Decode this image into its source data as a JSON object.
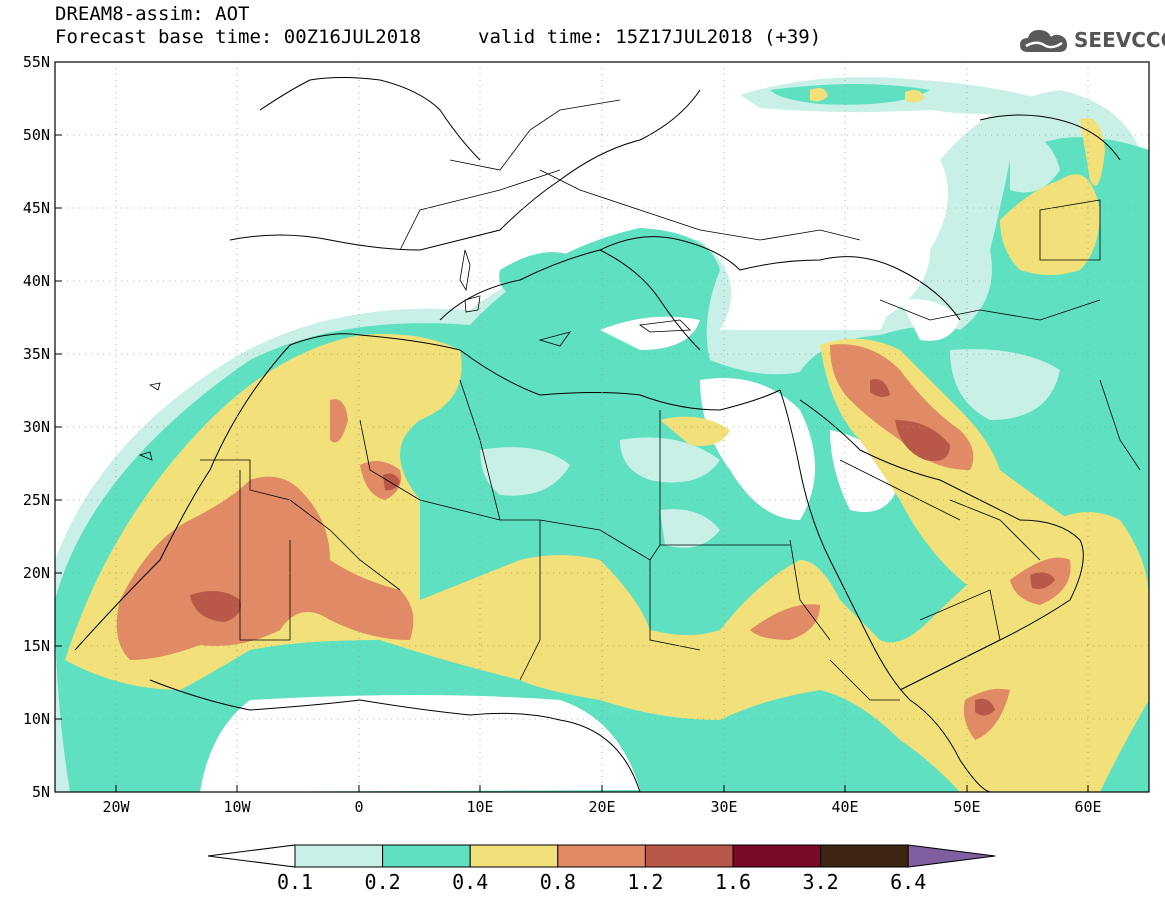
{
  "header": {
    "title": "DREAM8-assim: AOT",
    "base_time": "Forecast base time: 00Z16JUL2018",
    "valid_time": "valid time: 15Z17JUL2018 (+39)"
  },
  "logo": {
    "text": "SEEVCCC",
    "icon": "cloud-icon"
  },
  "map": {
    "lat_labels": [
      "55N",
      "50N",
      "45N",
      "40N",
      "35N",
      "30N",
      "25N",
      "20N",
      "15N",
      "10N",
      "5N"
    ],
    "lon_labels": [
      "20W",
      "10W",
      "0",
      "10E",
      "20E",
      "30E",
      "40E",
      "50E",
      "60E"
    ],
    "variable": "Aerosol optical thickness",
    "lat_range": [
      5,
      55
    ],
    "lon_range": [
      -25,
      65
    ]
  },
  "colorbar": {
    "labels": [
      "0.1",
      "0.2",
      "0.4",
      "0.8",
      "1.2",
      "1.6",
      "3.2",
      "6.4"
    ],
    "colors": [
      "#ffffff",
      "#c8f0e6",
      "#5fe0c0",
      "#f2e07a",
      "#e08a66",
      "#b85848",
      "#7a0a26",
      "#3e2412",
      "#7f5fa0"
    ]
  }
}
